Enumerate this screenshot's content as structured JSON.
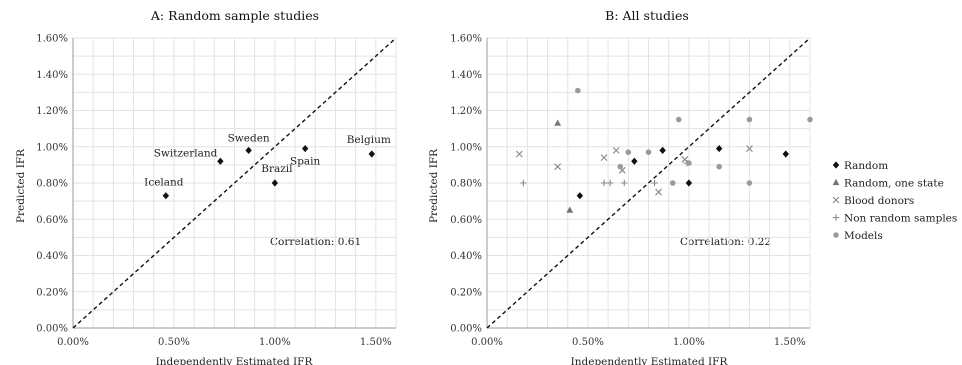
{
  "chart_data": [
    {
      "type": "scatter",
      "title": "A: Random sample studies",
      "xlabel": "Independently Estimated IFR",
      "ylabel": "Predicted IFR",
      "xlim": [
        0,
        1.6
      ],
      "ylim": [
        0,
        1.6
      ],
      "x_ticks": [
        "0.00%",
        "0.50%",
        "1.00%",
        "1.50%"
      ],
      "y_ticks": [
        "0.00%",
        "0.20%",
        "0.40%",
        "0.60%",
        "0.80%",
        "1.00%",
        "1.20%",
        "1.40%",
        "1.60%"
      ],
      "grid": true,
      "annotation": "Correlation: 0.61",
      "identity_line": true,
      "points": [
        {
          "label": "Iceland",
          "x": 0.46,
          "y": 0.73,
          "series": "Random"
        },
        {
          "label": "Switzerland",
          "x": 0.73,
          "y": 0.92,
          "series": "Random"
        },
        {
          "label": "Sweden",
          "x": 0.87,
          "y": 0.98,
          "series": "Random"
        },
        {
          "label": "Brazil",
          "x": 1.0,
          "y": 0.8,
          "series": "Random"
        },
        {
          "label": "Spain",
          "x": 1.15,
          "y": 0.99,
          "series": "Random"
        },
        {
          "label": "Belgium",
          "x": 1.48,
          "y": 0.96,
          "series": "Random"
        }
      ]
    },
    {
      "type": "scatter",
      "title": "B: All studies",
      "xlabel": "Independently Estimated IFR",
      "ylabel": "Predicted IFR",
      "xlim": [
        0,
        1.6
      ],
      "ylim": [
        0,
        1.6
      ],
      "x_ticks": [
        "0.00%",
        "0.50%",
        "1.00%",
        "1.50%"
      ],
      "y_ticks": [
        "0.00%",
        "0.20%",
        "0.40%",
        "0.60%",
        "0.80%",
        "1.00%",
        "1.20%",
        "1.40%",
        "1.60%"
      ],
      "grid": true,
      "annotation": "Correlation: 0.22",
      "identity_line": true,
      "legend_position": "right",
      "series": [
        {
          "name": "Random",
          "marker": "diamond",
          "color": "#111111",
          "points": [
            [
              0.46,
              0.73
            ],
            [
              0.73,
              0.92
            ],
            [
              0.87,
              0.98
            ],
            [
              1.0,
              0.8
            ],
            [
              1.15,
              0.99
            ],
            [
              1.48,
              0.96
            ]
          ]
        },
        {
          "name": "Random, one state",
          "marker": "triangle",
          "color": "#777777",
          "points": [
            [
              0.35,
              1.13
            ],
            [
              0.41,
              0.65
            ]
          ]
        },
        {
          "name": "Blood donors",
          "marker": "x",
          "color": "#888888",
          "points": [
            [
              0.16,
              0.96
            ],
            [
              0.35,
              0.89
            ],
            [
              0.58,
              0.94
            ],
            [
              0.64,
              0.98
            ],
            [
              0.67,
              0.87
            ],
            [
              0.85,
              0.75
            ],
            [
              0.98,
              0.93
            ],
            [
              1.3,
              0.99
            ]
          ]
        },
        {
          "name": "Non random samples",
          "marker": "plus",
          "color": "#888888",
          "points": [
            [
              0.18,
              0.8
            ],
            [
              0.58,
              0.8
            ],
            [
              0.61,
              0.8
            ],
            [
              0.68,
              0.8
            ],
            [
              0.83,
              0.8
            ],
            [
              0.99,
              0.91
            ]
          ]
        },
        {
          "name": "Models",
          "marker": "circle",
          "color": "#9a9a9a",
          "points": [
            [
              0.45,
              1.31
            ],
            [
              0.66,
              0.89
            ],
            [
              0.7,
              0.97
            ],
            [
              0.8,
              0.97
            ],
            [
              0.92,
              0.8
            ],
            [
              0.95,
              1.15
            ],
            [
              1.0,
              0.91
            ],
            [
              1.15,
              0.89
            ],
            [
              1.3,
              1.15
            ],
            [
              1.3,
              0.8
            ],
            [
              1.6,
              1.15
            ]
          ]
        }
      ]
    }
  ]
}
